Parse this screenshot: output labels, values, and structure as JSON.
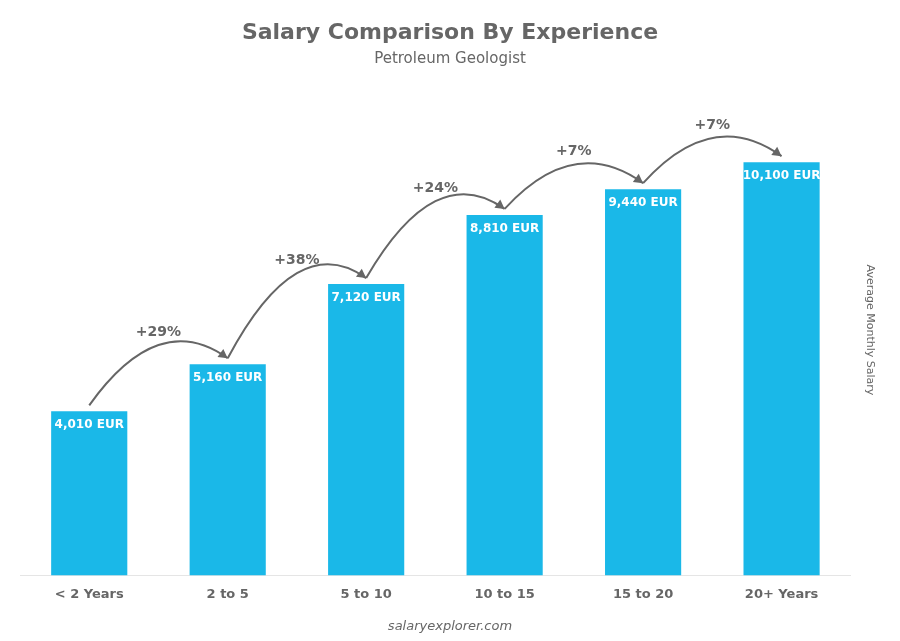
{
  "chart_data": {
    "type": "bar",
    "title": "Salary Comparison By Experience",
    "subtitle": "Petroleum Geologist",
    "categories": [
      "< 2 Years",
      "2 to 5",
      "5 to 10",
      "10 to 15",
      "15 to 20",
      "20+ Years"
    ],
    "values": [
      4010,
      5160,
      7120,
      8810,
      9440,
      10100
    ],
    "value_labels": [
      "4,010 EUR",
      "5,160 EUR",
      "7,120 EUR",
      "8,810 EUR",
      "9,440 EUR",
      "10,100 EUR"
    ],
    "data_labels": true,
    "annotations": [
      "+29%",
      "+38%",
      "+24%",
      "+7%",
      "+7%"
    ],
    "ylabel": "Average Monthly Salary",
    "footer": "salaryexplorer.com",
    "color": "#1ab8e8",
    "ylim": [
      0,
      12000
    ],
    "grid": false,
    "tick_labels": "x"
  }
}
